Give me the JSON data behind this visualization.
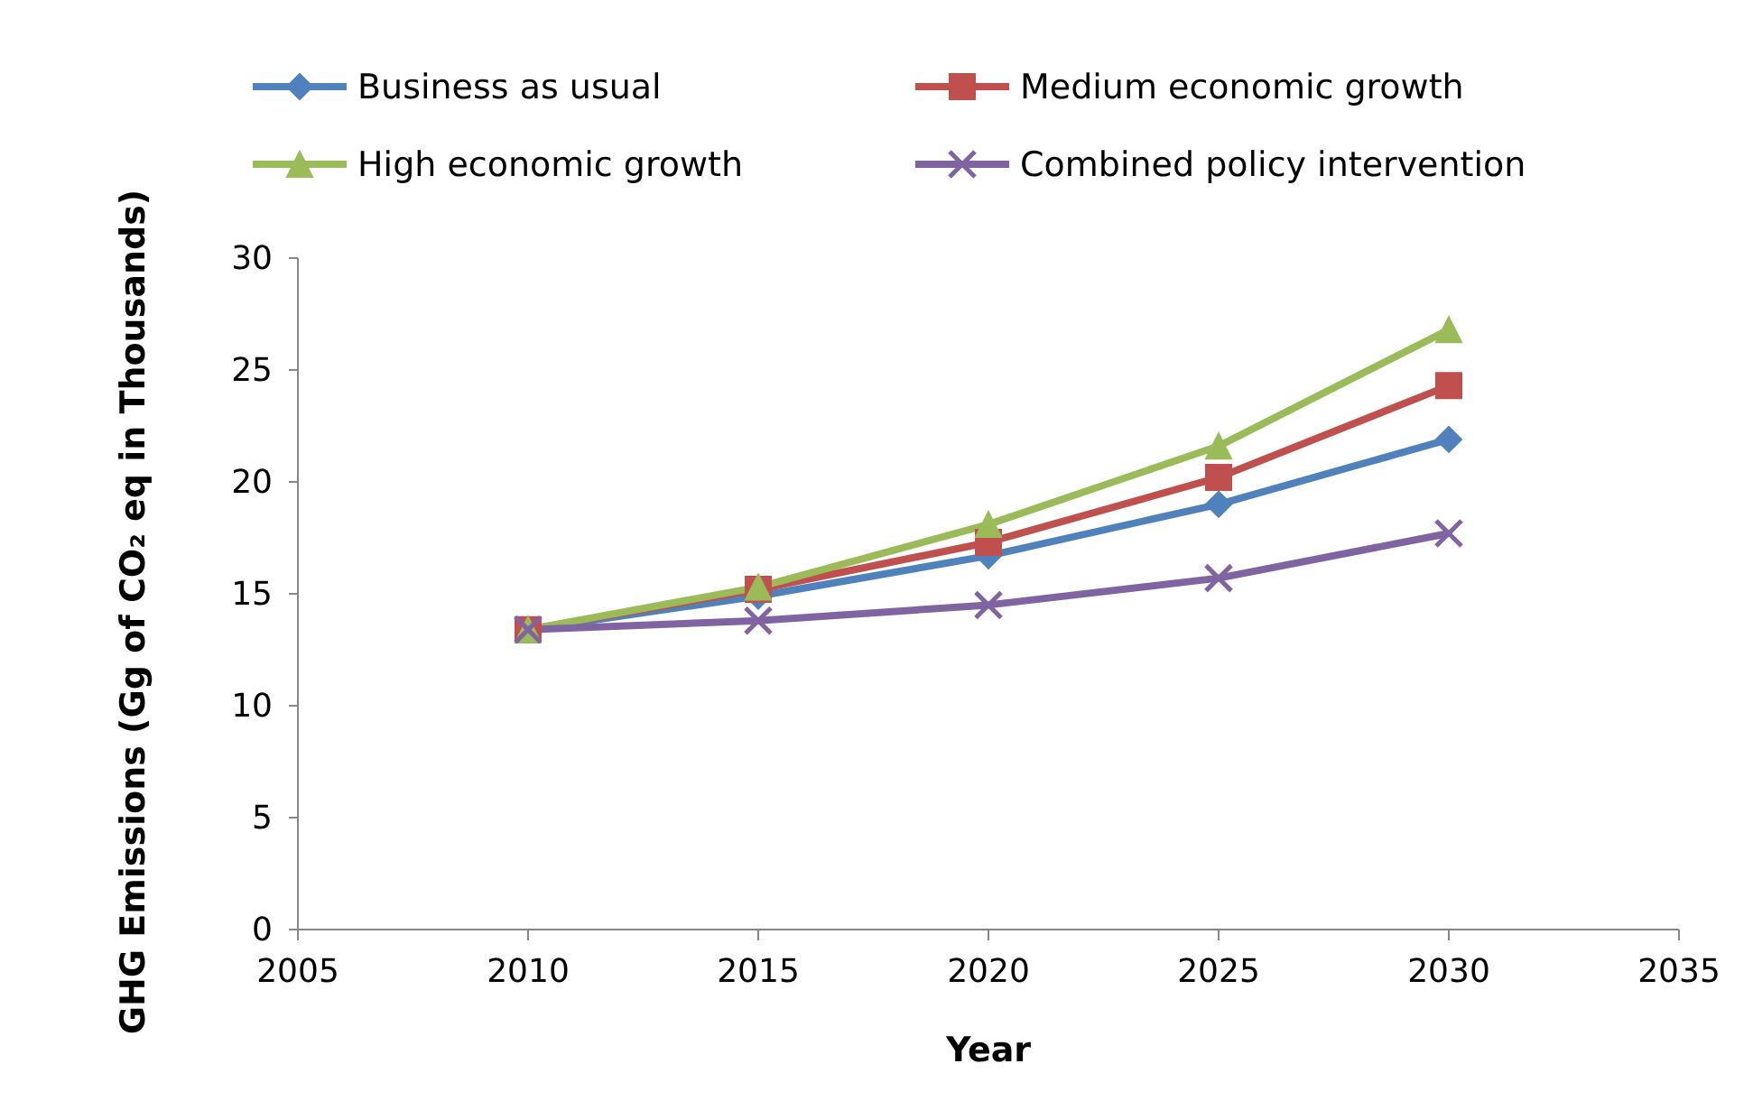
{
  "chart_data": {
    "type": "line",
    "xlabel": "Year",
    "ylabel": "GHG Emissions (Gg of CO₂ eq in Thousands)",
    "x": [
      2010,
      2015,
      2020,
      2025,
      2030
    ],
    "series": [
      {
        "name": "Business as usual",
        "color": "#4f81bd",
        "marker": "diamond",
        "values": [
          13.4,
          14.9,
          16.7,
          19.0,
          21.9
        ]
      },
      {
        "name": "Medium economic growth",
        "color": "#c0504d",
        "marker": "square",
        "values": [
          13.4,
          15.2,
          17.3,
          20.2,
          24.3
        ]
      },
      {
        "name": "High economic growth",
        "color": "#9bbb59",
        "marker": "triangle",
        "values": [
          13.4,
          15.3,
          18.1,
          21.6,
          26.8
        ]
      },
      {
        "name": "Combined policy intervention",
        "color": "#8064a2",
        "marker": "cross",
        "values": [
          13.4,
          13.8,
          14.5,
          15.7,
          17.7
        ]
      }
    ],
    "xlim": [
      2005,
      2035
    ],
    "xticks": [
      2005,
      2010,
      2015,
      2020,
      2025,
      2030,
      2035
    ],
    "ylim": [
      0,
      30
    ],
    "yticks": [
      0,
      5,
      10,
      15,
      20,
      25,
      30
    ],
    "grid": false,
    "legend": "top",
    "line_style": "solid"
  }
}
